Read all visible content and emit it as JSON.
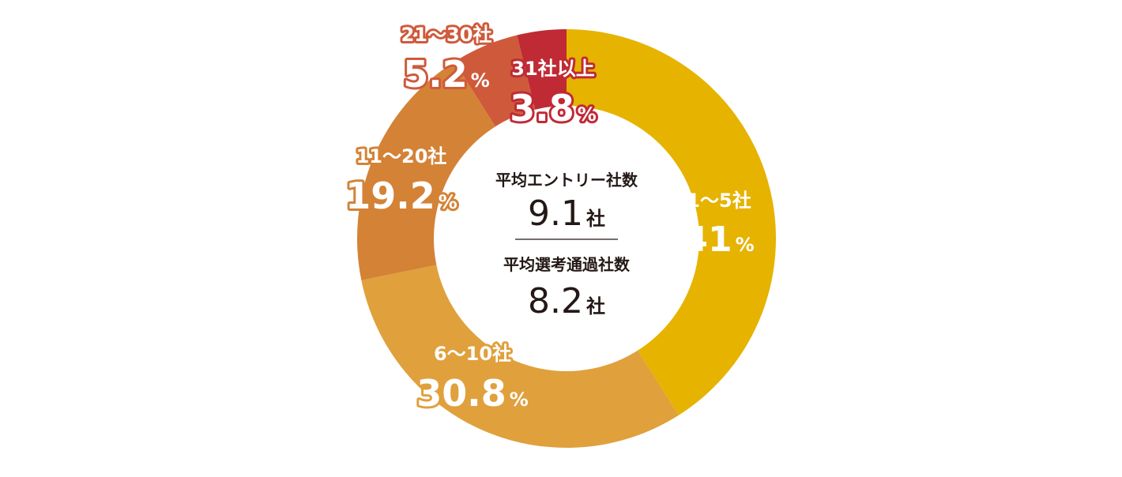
{
  "chart_data": {
    "type": "pie",
    "donut": true,
    "categories": [
      "1～5社",
      "6～10社",
      "11～20社",
      "21～30社",
      "31社以上"
    ],
    "values": [
      41,
      30.8,
      19.2,
      5.2,
      3.8
    ],
    "value_labels": [
      "41",
      "30.8",
      "19.2",
      "5.2",
      "3.8"
    ],
    "unit": "%",
    "colors": [
      "#e6b300",
      "#e0a03c",
      "#d48236",
      "#cf5a3b",
      "#c02a35"
    ],
    "start_angle_deg": 0,
    "direction": "clockwise"
  },
  "center": {
    "title1": "平均エントリー社数",
    "value1": "9.1",
    "unit1": "社",
    "title2": "平均選考通過社数",
    "value2": "8.2",
    "unit2": "社",
    "divider_color": "#231815"
  }
}
